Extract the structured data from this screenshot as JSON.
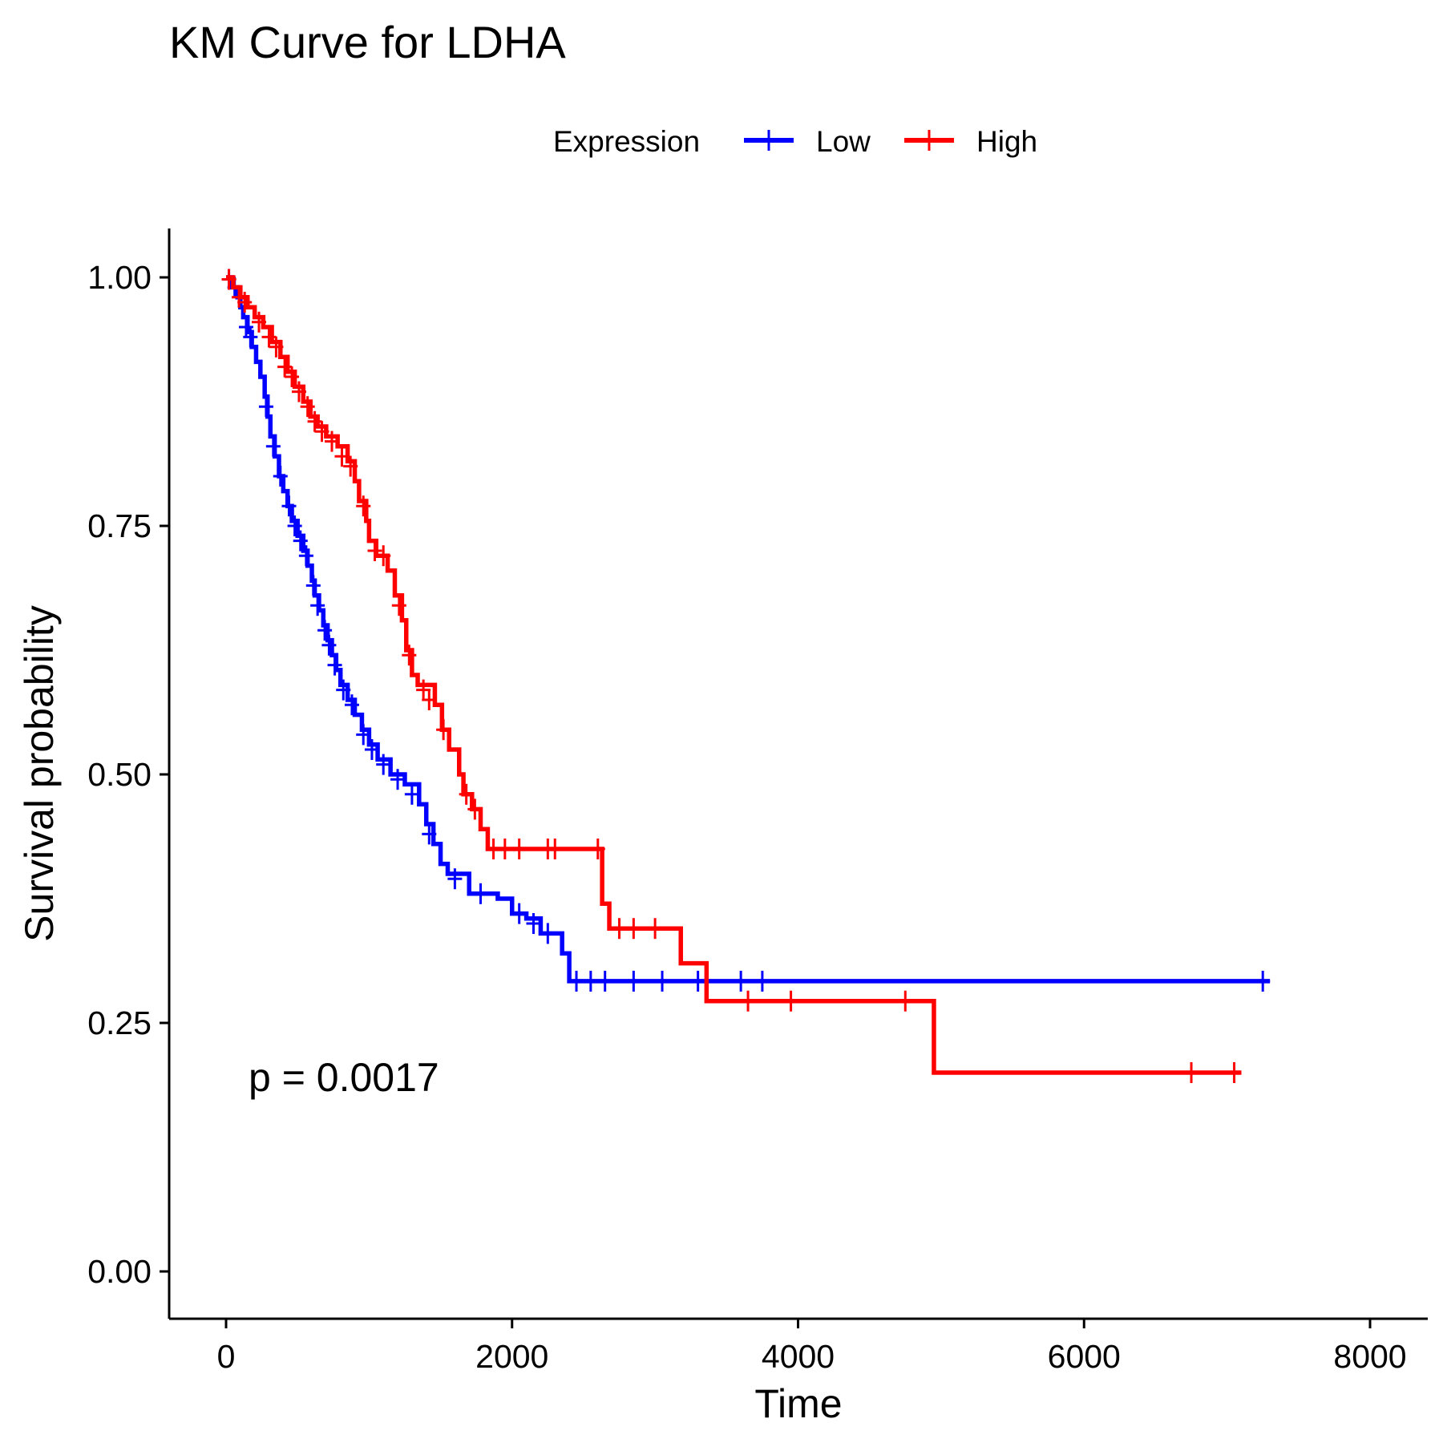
{
  "chart_data": {
    "type": "line",
    "title": "KM Curve for LDHA",
    "xlabel": "Time",
    "ylabel": "Survival probability",
    "xlim": [
      -400,
      8400
    ],
    "ylim": [
      -0.05,
      1.05
    ],
    "x_ticks": [
      0,
      2000,
      4000,
      6000,
      8000
    ],
    "x_tick_labels": [
      "0",
      "2000",
      "4000",
      "6000",
      "8000"
    ],
    "y_ticks": [
      0,
      0.25,
      0.5,
      0.75,
      1.0
    ],
    "y_tick_labels": [
      "0.00",
      "0.25",
      "0.50",
      "0.75",
      "1.00"
    ],
    "grid": false,
    "legend": {
      "title": "Expression",
      "position": "top",
      "items": [
        "Low",
        "High"
      ]
    },
    "annotation": "p = 0.0017",
    "series": [
      {
        "name": "Low",
        "color": "#0000ff",
        "steps": [
          [
            0,
            1.0
          ],
          [
            40,
            0.99
          ],
          [
            80,
            0.98
          ],
          [
            100,
            0.97
          ],
          [
            120,
            0.96
          ],
          [
            150,
            0.945
          ],
          [
            180,
            0.93
          ],
          [
            210,
            0.915
          ],
          [
            240,
            0.9
          ],
          [
            270,
            0.88
          ],
          [
            290,
            0.86
          ],
          [
            310,
            0.84
          ],
          [
            340,
            0.82
          ],
          [
            370,
            0.8
          ],
          [
            400,
            0.785
          ],
          [
            430,
            0.77
          ],
          [
            460,
            0.755
          ],
          [
            500,
            0.74
          ],
          [
            540,
            0.725
          ],
          [
            570,
            0.71
          ],
          [
            600,
            0.695
          ],
          [
            620,
            0.68
          ],
          [
            650,
            0.665
          ],
          [
            680,
            0.65
          ],
          [
            710,
            0.635
          ],
          [
            740,
            0.62
          ],
          [
            770,
            0.605
          ],
          [
            800,
            0.59
          ],
          [
            850,
            0.575
          ],
          [
            900,
            0.56
          ],
          [
            950,
            0.545
          ],
          [
            1000,
            0.53
          ],
          [
            1060,
            0.515
          ],
          [
            1150,
            0.5
          ],
          [
            1250,
            0.49
          ],
          [
            1350,
            0.47
          ],
          [
            1400,
            0.45
          ],
          [
            1450,
            0.43
          ],
          [
            1500,
            0.41
          ],
          [
            1550,
            0.4
          ],
          [
            1700,
            0.38
          ],
          [
            1900,
            0.375
          ],
          [
            2000,
            0.36
          ],
          [
            2100,
            0.355
          ],
          [
            2200,
            0.34
          ],
          [
            2350,
            0.32
          ],
          [
            2400,
            0.292
          ]
        ],
        "end_x": 7300,
        "censors": [
          [
            20,
            0.998
          ],
          [
            60,
            0.99
          ],
          [
            140,
            0.95
          ],
          [
            170,
            0.94
          ],
          [
            280,
            0.87
          ],
          [
            330,
            0.83
          ],
          [
            380,
            0.8
          ],
          [
            440,
            0.77
          ],
          [
            480,
            0.75
          ],
          [
            520,
            0.735
          ],
          [
            560,
            0.72
          ],
          [
            610,
            0.69
          ],
          [
            640,
            0.67
          ],
          [
            690,
            0.645
          ],
          [
            720,
            0.63
          ],
          [
            760,
            0.61
          ],
          [
            820,
            0.585
          ],
          [
            880,
            0.57
          ],
          [
            960,
            0.54
          ],
          [
            1020,
            0.525
          ],
          [
            1100,
            0.51
          ],
          [
            1200,
            0.495
          ],
          [
            1300,
            0.48
          ],
          [
            1420,
            0.44
          ],
          [
            1600,
            0.395
          ],
          [
            1780,
            0.38
          ],
          [
            2050,
            0.36
          ],
          [
            2150,
            0.35
          ],
          [
            2250,
            0.34
          ],
          [
            2450,
            0.292
          ],
          [
            2550,
            0.292
          ],
          [
            2650,
            0.292
          ],
          [
            2850,
            0.292
          ],
          [
            3050,
            0.292
          ],
          [
            3300,
            0.292
          ],
          [
            3600,
            0.292
          ],
          [
            3750,
            0.292
          ],
          [
            7250,
            0.292
          ]
        ]
      },
      {
        "name": "High",
        "color": "#ff0000",
        "steps": [
          [
            0,
            1.0
          ],
          [
            50,
            0.99
          ],
          [
            100,
            0.98
          ],
          [
            150,
            0.97
          ],
          [
            200,
            0.96
          ],
          [
            260,
            0.95
          ],
          [
            320,
            0.935
          ],
          [
            380,
            0.92
          ],
          [
            430,
            0.905
          ],
          [
            480,
            0.89
          ],
          [
            540,
            0.875
          ],
          [
            590,
            0.86
          ],
          [
            640,
            0.85
          ],
          [
            700,
            0.84
          ],
          [
            780,
            0.83
          ],
          [
            850,
            0.815
          ],
          [
            900,
            0.795
          ],
          [
            930,
            0.775
          ],
          [
            980,
            0.755
          ],
          [
            1000,
            0.735
          ],
          [
            1050,
            0.72
          ],
          [
            1130,
            0.705
          ],
          [
            1180,
            0.68
          ],
          [
            1230,
            0.655
          ],
          [
            1260,
            0.625
          ],
          [
            1300,
            0.6
          ],
          [
            1340,
            0.59
          ],
          [
            1460,
            0.57
          ],
          [
            1510,
            0.545
          ],
          [
            1560,
            0.525
          ],
          [
            1630,
            0.5
          ],
          [
            1660,
            0.48
          ],
          [
            1720,
            0.465
          ],
          [
            1780,
            0.445
          ],
          [
            1830,
            0.425
          ],
          [
            2630,
            0.37
          ],
          [
            2680,
            0.345
          ],
          [
            3180,
            0.31
          ],
          [
            3360,
            0.272
          ],
          [
            4950,
            0.2
          ]
        ],
        "end_x": 7100,
        "censors": [
          [
            20,
            0.998
          ],
          [
            90,
            0.98
          ],
          [
            130,
            0.975
          ],
          [
            230,
            0.955
          ],
          [
            300,
            0.94
          ],
          [
            350,
            0.93
          ],
          [
            410,
            0.91
          ],
          [
            460,
            0.9
          ],
          [
            510,
            0.885
          ],
          [
            570,
            0.87
          ],
          [
            620,
            0.855
          ],
          [
            670,
            0.845
          ],
          [
            740,
            0.835
          ],
          [
            810,
            0.82
          ],
          [
            870,
            0.81
          ],
          [
            960,
            0.77
          ],
          [
            1040,
            0.725
          ],
          [
            1100,
            0.72
          ],
          [
            1210,
            0.67
          ],
          [
            1280,
            0.62
          ],
          [
            1380,
            0.585
          ],
          [
            1420,
            0.575
          ],
          [
            1520,
            0.545
          ],
          [
            1680,
            0.48
          ],
          [
            1740,
            0.465
          ],
          [
            1870,
            0.425
          ],
          [
            1950,
            0.425
          ],
          [
            2050,
            0.425
          ],
          [
            2250,
            0.425
          ],
          [
            2300,
            0.425
          ],
          [
            2600,
            0.425
          ],
          [
            2750,
            0.345
          ],
          [
            2850,
            0.345
          ],
          [
            3000,
            0.345
          ],
          [
            3650,
            0.272
          ],
          [
            3950,
            0.272
          ],
          [
            4750,
            0.272
          ],
          [
            6750,
            0.2
          ],
          [
            7050,
            0.2
          ]
        ]
      }
    ]
  }
}
